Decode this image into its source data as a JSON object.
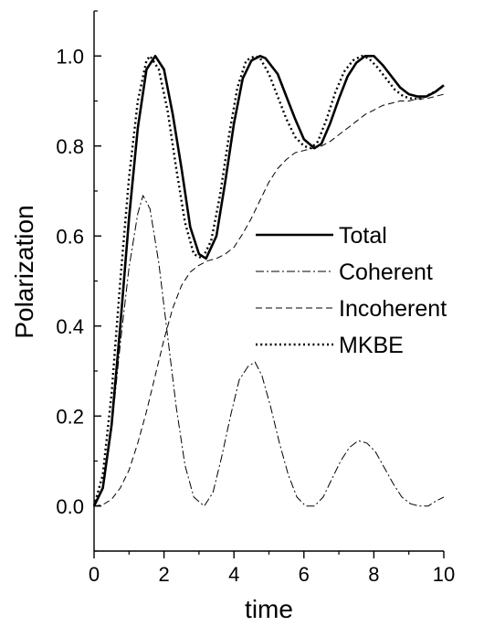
{
  "chart_data": {
    "type": "line",
    "title": "",
    "xlabel": "time",
    "ylabel": "Polarization",
    "xlim": [
      0,
      10
    ],
    "ylim": [
      -0.1,
      1.1
    ],
    "x_ticks": [
      0,
      2,
      4,
      6,
      8,
      10
    ],
    "x_tick_labels": [
      "0",
      "2",
      "4",
      "6",
      "8",
      "10"
    ],
    "y_ticks": [
      0.0,
      0.2,
      0.4,
      0.6,
      0.8,
      1.0
    ],
    "y_tick_labels": [
      "0.0",
      "0.2",
      "0.4",
      "0.6",
      "0.8",
      "1.0"
    ],
    "grid": false,
    "legend_position": "center-right",
    "series": [
      {
        "name": "Total",
        "style": "solid",
        "x": [
          0,
          0.25,
          0.5,
          0.75,
          1.0,
          1.25,
          1.5,
          1.75,
          2.0,
          2.25,
          2.5,
          2.75,
          3.0,
          3.2,
          3.5,
          3.75,
          4.0,
          4.25,
          4.5,
          4.75,
          4.9,
          5.25,
          5.5,
          5.75,
          6.0,
          6.3,
          6.5,
          6.75,
          7.0,
          7.25,
          7.5,
          7.75,
          8.0,
          8.25,
          8.5,
          8.75,
          9.0,
          9.25,
          9.5,
          9.75,
          10.0
        ],
        "values": [
          0.0,
          0.04,
          0.18,
          0.4,
          0.64,
          0.84,
          0.97,
          1.0,
          0.97,
          0.87,
          0.75,
          0.62,
          0.56,
          0.55,
          0.6,
          0.72,
          0.85,
          0.95,
          0.99,
          1.0,
          0.995,
          0.96,
          0.91,
          0.86,
          0.815,
          0.795,
          0.805,
          0.85,
          0.905,
          0.955,
          0.985,
          1.0,
          1.0,
          0.98,
          0.955,
          0.93,
          0.915,
          0.91,
          0.91,
          0.92,
          0.935
        ]
      },
      {
        "name": "Coherent",
        "style": "dashdot",
        "x": [
          0,
          0.25,
          0.5,
          0.75,
          1.0,
          1.25,
          1.4,
          1.6,
          1.85,
          2.1,
          2.35,
          2.6,
          2.85,
          3.15,
          3.4,
          3.65,
          3.9,
          4.15,
          4.4,
          4.6,
          4.8,
          5.05,
          5.3,
          5.55,
          5.8,
          6.05,
          6.3,
          6.55,
          6.8,
          7.05,
          7.3,
          7.55,
          7.8,
          8.05,
          8.3,
          8.55,
          8.8,
          9.05,
          9.3,
          9.55,
          9.75,
          10.0
        ],
        "values": [
          0.0,
          0.04,
          0.17,
          0.36,
          0.53,
          0.65,
          0.69,
          0.66,
          0.54,
          0.38,
          0.22,
          0.09,
          0.02,
          0.0,
          0.03,
          0.11,
          0.2,
          0.28,
          0.31,
          0.32,
          0.29,
          0.22,
          0.14,
          0.07,
          0.02,
          0.0,
          0.0,
          0.02,
          0.06,
          0.1,
          0.13,
          0.145,
          0.14,
          0.12,
          0.085,
          0.05,
          0.02,
          0.005,
          0.0,
          0.0,
          0.01,
          0.02
        ]
      },
      {
        "name": "Incoherent",
        "style": "dashed",
        "x": [
          0,
          0.25,
          0.5,
          0.75,
          1.0,
          1.25,
          1.5,
          1.75,
          2.0,
          2.25,
          2.5,
          2.75,
          3.0,
          3.25,
          3.5,
          3.75,
          4.0,
          4.25,
          4.5,
          4.75,
          5.0,
          5.25,
          5.5,
          5.75,
          6.0,
          6.25,
          6.5,
          6.75,
          7.0,
          7.25,
          7.5,
          7.75,
          8.0,
          8.25,
          8.5,
          8.75,
          9.0,
          9.25,
          9.5,
          9.75,
          10.0
        ],
        "values": [
          0.0,
          0.003,
          0.015,
          0.04,
          0.08,
          0.14,
          0.21,
          0.29,
          0.37,
          0.44,
          0.49,
          0.52,
          0.535,
          0.545,
          0.55,
          0.56,
          0.575,
          0.605,
          0.64,
          0.68,
          0.72,
          0.75,
          0.77,
          0.785,
          0.79,
          0.795,
          0.8,
          0.81,
          0.825,
          0.84,
          0.855,
          0.87,
          0.88,
          0.89,
          0.895,
          0.9,
          0.9,
          0.905,
          0.905,
          0.91,
          0.915
        ]
      },
      {
        "name": "MKBE",
        "style": "dotted",
        "x": [
          0,
          0.25,
          0.5,
          0.75,
          1.0,
          1.25,
          1.5,
          1.6,
          1.85,
          2.1,
          2.35,
          2.6,
          2.85,
          3.1,
          3.35,
          3.6,
          3.85,
          4.1,
          4.35,
          4.6,
          4.75,
          5.0,
          5.25,
          5.5,
          5.75,
          6.0,
          6.2,
          6.4,
          6.65,
          6.9,
          7.15,
          7.4,
          7.65,
          7.85,
          8.1,
          8.35,
          8.6,
          8.85,
          9.1,
          9.35,
          9.6,
          9.85,
          10.0
        ],
        "values": [
          0.0,
          0.07,
          0.25,
          0.5,
          0.73,
          0.9,
          0.99,
          1.0,
          0.97,
          0.88,
          0.75,
          0.63,
          0.56,
          0.55,
          0.59,
          0.69,
          0.82,
          0.93,
          0.99,
          1.0,
          0.995,
          0.96,
          0.91,
          0.86,
          0.82,
          0.8,
          0.795,
          0.81,
          0.86,
          0.92,
          0.965,
          0.99,
          1.0,
          0.995,
          0.975,
          0.95,
          0.925,
          0.91,
          0.905,
          0.905,
          0.915,
          0.925,
          0.935
        ]
      }
    ]
  }
}
